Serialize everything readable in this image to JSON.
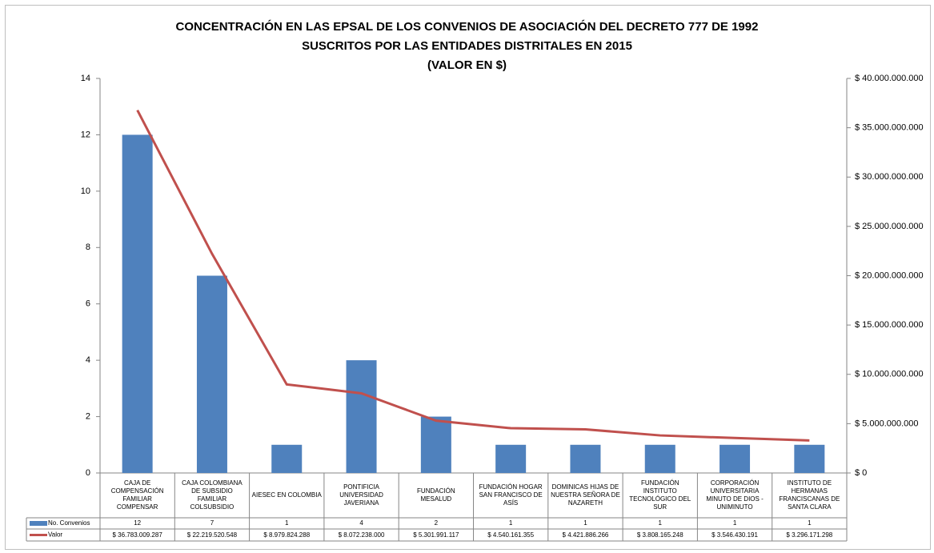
{
  "chart_data": {
    "type": "bar_line",
    "title": "CONCENTRACIÓN EN LAS EPSAL DE LOS CONVENIOS DE ASOCIACIÓN DEL DECRETO 777 DE 1992\nSUSCRITOS POR LAS ENTIDADES DISTRITALES EN 2015\n(VALOR EN $)",
    "categories": [
      "CAJA DE COMPENSACIÓN FAMILIAR COMPENSAR",
      "CAJA COLOMBIANA DE SUBSIDIO FAMILIAR COLSUBSIDIO",
      "AIESEC EN COLOMBIA",
      "PONTIFICIA UNIVERSIDAD JAVERIANA",
      "FUNDACIÓN MESALUD",
      "FUNDACIÓN HOGAR SAN FRANCISCO DE ASÍS",
      "DOMINICAS HIJAS DE NUESTRA SEÑORA DE NAZARETH",
      "FUNDACIÓN INSTITUTO TECNOLÓGICO DEL SUR",
      "CORPORACIÓN UNIVERSITARIA MINUTO DE DIOS - UNIMINUTO",
      "INSTITUTO DE HERMANAS FRANCISCANAS DE SANTA CLARA"
    ],
    "series": [
      {
        "name": "No. Convenios",
        "color": "#4f81bd",
        "type": "bar",
        "values": [
          12,
          7,
          1,
          4,
          2,
          1,
          1,
          1,
          1,
          1
        ]
      },
      {
        "name": "Valor",
        "color": "#c0504d",
        "type": "line",
        "axis": "y2",
        "values": [
          36783009287,
          22219520548,
          8979824288,
          8072238000,
          5301991117,
          4540161355,
          4421886266,
          3808165248,
          3546430191,
          3296171298
        ],
        "value_labels": [
          "$ 36.783.009.287",
          "$ 22.219.520.548",
          "$ 8.979.824.288",
          "$ 8.072.238.000",
          "$ 5.301.991.117",
          "$ 4.540.161.355",
          "$ 4.421.886.266",
          "$ 3.808.165.248",
          "$ 3.546.430.191",
          "$ 3.296.171.298"
        ]
      }
    ],
    "ylim": [
      0,
      14
    ],
    "yticks": [
      0,
      2,
      4,
      6,
      8,
      10,
      12,
      14
    ],
    "y2lim": [
      0,
      40000000000
    ],
    "y2ticks": [
      {
        "value": 0,
        "label": "$ 0"
      },
      {
        "value": 5000000000,
        "label": "$ 5.000.000.000"
      },
      {
        "value": 10000000000,
        "label": "$ 10.000.000.000"
      },
      {
        "value": 15000000000,
        "label": "$ 15.000.000.000"
      },
      {
        "value": 20000000000,
        "label": "$ 20.000.000.000"
      },
      {
        "value": 25000000000,
        "label": "$ 25.000.000.000"
      },
      {
        "value": 30000000000,
        "label": "$ 30.000.000.000"
      },
      {
        "value": 35000000000,
        "label": "$ 35.000.000.000"
      },
      {
        "value": 40000000000,
        "label": "$ 40.000.000.000"
      }
    ],
    "grid": false
  }
}
